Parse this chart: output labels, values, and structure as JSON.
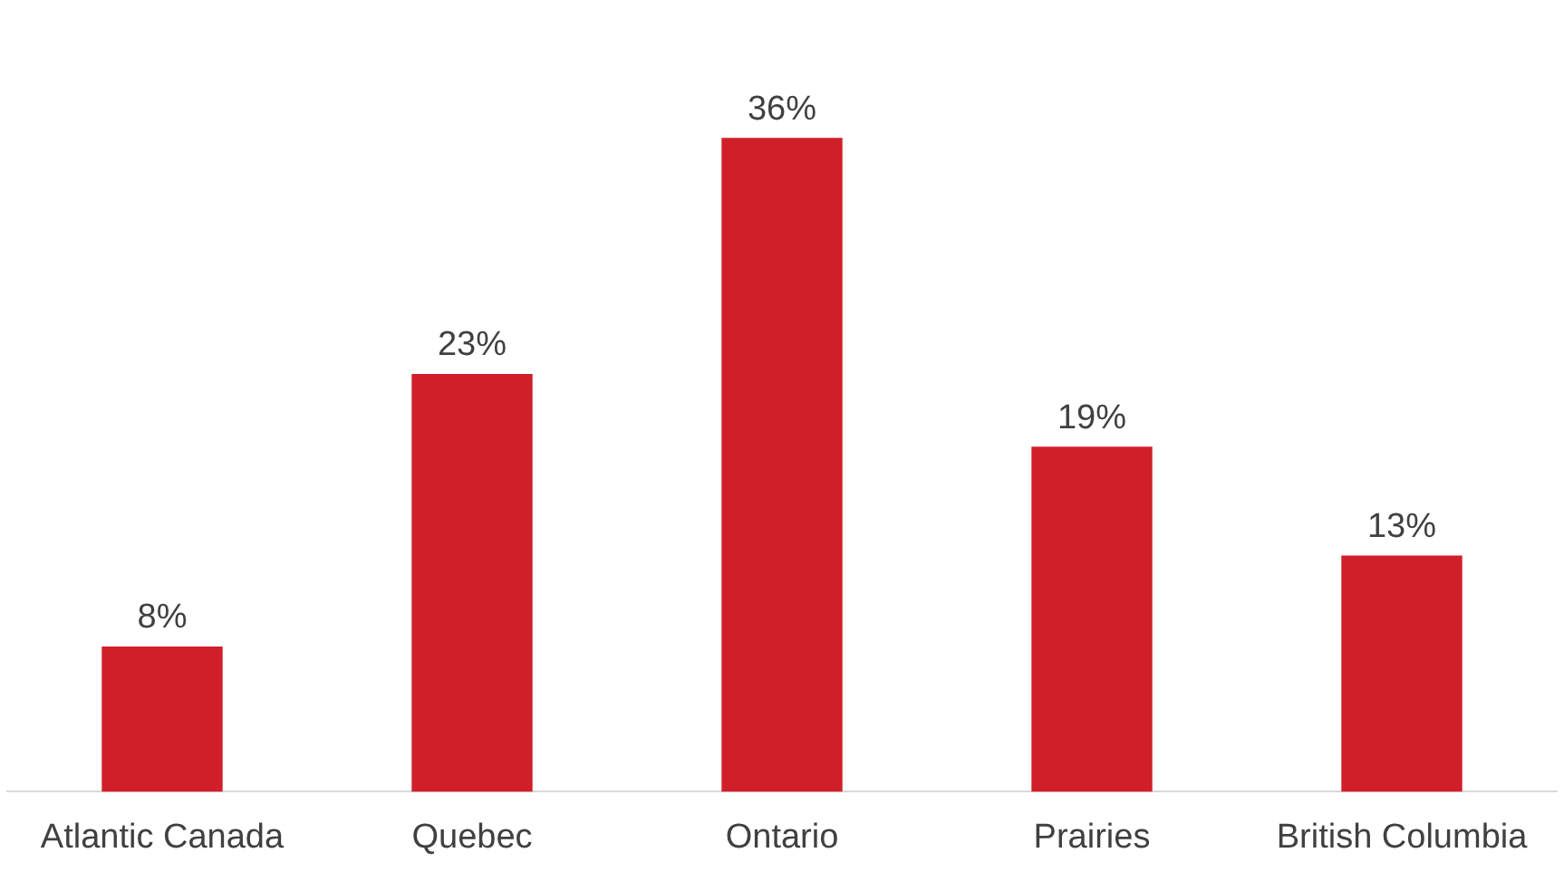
{
  "chart_data": {
    "type": "bar",
    "categories": [
      "Atlantic Canada",
      "Quebec",
      "Ontario",
      "Prairies",
      "British Columbia"
    ],
    "values": [
      8,
      23,
      36,
      19,
      13
    ],
    "value_labels": [
      "8%",
      "23%",
      "36%",
      "19%",
      "13%"
    ],
    "color": "#d01f29",
    "legend": false,
    "grid": false
  }
}
